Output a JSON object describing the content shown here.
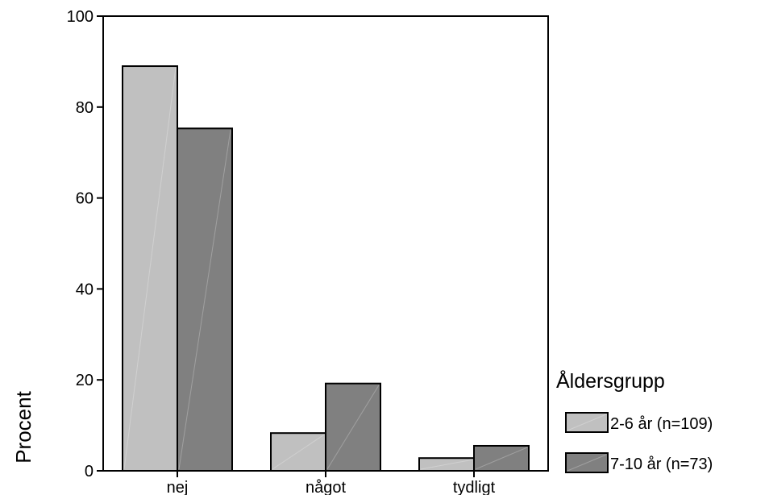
{
  "chart_data": {
    "type": "bar",
    "title": "",
    "xlabel": "",
    "ylabel": "Procent",
    "ylim": [
      0,
      100
    ],
    "yticks": [
      0,
      20,
      40,
      60,
      80,
      100
    ],
    "categories": [
      "nej",
      "något",
      "tydligt"
    ],
    "series": [
      {
        "name": "2-6 år (n=109)",
        "values": [
          89.0,
          8.3,
          2.8
        ],
        "color": "#c0c0c0"
      },
      {
        "name": "7-10 år (n=73)",
        "values": [
          75.3,
          19.2,
          5.5
        ],
        "color": "#808080"
      }
    ],
    "legend": {
      "title": "Åldersgrupp",
      "placement": "right"
    },
    "grid": false
  }
}
